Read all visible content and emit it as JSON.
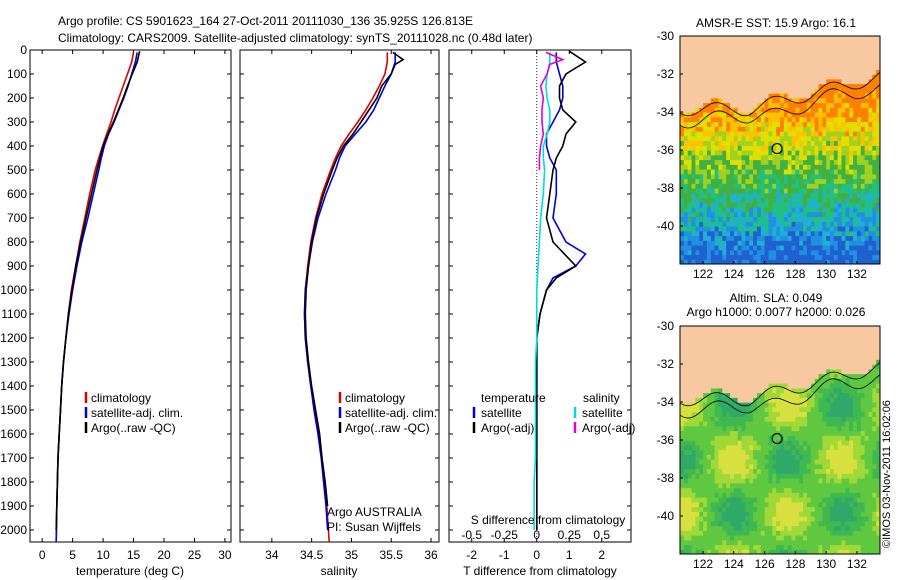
{
  "header": {
    "line1": "Argo profile: CS 5901623_164 27-Oct-2011 20111030_136 35.925S 126.813E",
    "line2": "Climatology: CARS2009. Satellite-adjusted climatology: synTS_20111028.nc (0.48d later)"
  },
  "colors": {
    "climatology": "#dd0000",
    "satellite": "#0000dd",
    "argo": "#000000",
    "cyan": "#00dddd",
    "magenta": "#dd00dd",
    "land": "#f8c8a0"
  },
  "chart_data": [
    {
      "type": "line",
      "id": "temperature",
      "xlabel": "temperature (deg C)",
      "xlim": [
        -2,
        31
      ],
      "ylim": [
        2050,
        0
      ],
      "x_ticks": [
        0,
        5,
        10,
        15,
        20,
        25,
        30
      ],
      "y_ticks": [
        0,
        100,
        200,
        300,
        400,
        500,
        600,
        700,
        800,
        900,
        1000,
        1100,
        1200,
        1300,
        1400,
        1500,
        1600,
        1700,
        1800,
        1900,
        2000
      ],
      "legend_labels": [
        "climatology",
        "satellite-adj. clim.",
        "Argo(..raw -QC)"
      ],
      "series": [
        {
          "name": "climatology",
          "color": "#dd0000",
          "depth": [
            10,
            50,
            100,
            150,
            200,
            250,
            300,
            350,
            400,
            450,
            500,
            600,
            700,
            800,
            900,
            1000,
            1100,
            1200,
            1300,
            1400,
            1500,
            1600,
            1700,
            1800,
            1900,
            2050
          ],
          "values": [
            15.0,
            14.7,
            14.0,
            13.3,
            12.6,
            11.9,
            11.3,
            10.6,
            9.9,
            9.3,
            8.7,
            7.8,
            7.0,
            6.2,
            5.5,
            4.8,
            4.3,
            3.9,
            3.5,
            3.2,
            3.0,
            2.8,
            2.6,
            2.5,
            2.4,
            2.3
          ]
        },
        {
          "name": "satellite-adj. clim.",
          "color": "#0000dd",
          "depth": [
            10,
            50,
            100,
            150,
            200,
            250,
            300,
            350,
            400,
            450,
            500,
            600,
            700,
            800,
            900,
            1000,
            1100,
            1200,
            1300,
            1400,
            1500,
            1600,
            1700,
            1800,
            1900,
            2050
          ],
          "values": [
            15.6,
            15.3,
            14.7,
            14.1,
            13.4,
            12.6,
            11.8,
            10.9,
            10.2,
            9.7,
            9.3,
            8.4,
            7.5,
            6.5,
            5.7,
            5.0,
            4.4,
            3.9,
            3.5,
            3.2,
            3.0,
            2.8,
            2.6,
            2.5,
            2.4,
            2.3
          ]
        },
        {
          "name": "Argo(..raw -QC)",
          "color": "#000000",
          "depth": [
            5,
            50,
            100,
            150,
            200,
            250,
            300,
            350,
            400,
            450,
            500,
            600,
            700,
            800,
            900,
            1000,
            1100,
            1200,
            1300,
            1400,
            1500,
            1600,
            1700,
            1800,
            1900,
            2000
          ],
          "values": [
            16.0,
            15.6,
            14.8,
            14.0,
            13.3,
            12.5,
            11.7,
            10.8,
            10.0,
            9.5,
            9.0,
            8.1,
            7.2,
            6.3,
            5.5,
            4.9,
            4.3,
            3.9,
            3.5,
            3.2,
            3.0,
            2.8,
            2.6,
            2.5,
            2.4,
            2.3
          ]
        }
      ]
    },
    {
      "type": "line",
      "id": "salinity",
      "xlabel": "salinity",
      "xlim": [
        33.6,
        36.1
      ],
      "ylim": [
        2050,
        0
      ],
      "x_ticks": [
        34,
        34.5,
        35,
        35.5,
        36
      ],
      "legend_labels": [
        "climatology",
        "satellite-adj. clim.",
        "Argo(..raw -QC)"
      ],
      "annotation": [
        "Argo AUSTRALIA",
        "PI: Susan Wijffels"
      ],
      "series": [
        {
          "name": "climatology",
          "color": "#dd0000",
          "depth": [
            10,
            50,
            100,
            150,
            200,
            250,
            300,
            350,
            400,
            450,
            500,
            600,
            700,
            800,
            900,
            1000,
            1100,
            1200,
            1300,
            1400,
            1500,
            1600,
            1700,
            1800,
            1900,
            2050
          ],
          "values": [
            35.45,
            35.45,
            35.42,
            35.35,
            35.27,
            35.18,
            35.08,
            34.97,
            34.87,
            34.8,
            34.74,
            34.63,
            34.55,
            34.49,
            34.45,
            34.42,
            34.41,
            34.42,
            34.45,
            34.49,
            34.54,
            34.59,
            34.63,
            34.66,
            34.69,
            34.72
          ]
        },
        {
          "name": "satellite-adj. clim.",
          "color": "#0000dd",
          "depth": [
            10,
            50,
            100,
            150,
            200,
            250,
            300,
            350,
            400,
            450,
            500,
            600,
            700,
            800,
            900,
            1000,
            1100,
            1200,
            1300,
            1400,
            1500,
            1600,
            1700,
            1800,
            1900,
            2000
          ],
          "values": [
            35.55,
            35.55,
            35.5,
            35.42,
            35.35,
            35.28,
            35.18,
            35.05,
            34.92,
            34.85,
            34.8,
            34.68,
            34.58,
            34.51,
            34.46,
            34.42,
            34.41,
            34.42,
            34.45,
            34.49,
            34.53,
            34.58,
            34.62,
            34.65,
            34.68,
            34.7
          ]
        },
        {
          "name": "Argo(..raw -QC)",
          "color": "#000000",
          "depth": [
            10,
            40,
            60,
            100,
            150,
            200,
            250,
            300,
            350,
            400,
            450,
            500,
            600,
            700,
            800,
            900,
            1000,
            1100,
            1200,
            1300,
            1400,
            1500,
            1600,
            1700,
            1800,
            1900
          ],
          "values": [
            35.52,
            35.65,
            35.55,
            35.5,
            35.38,
            35.32,
            35.22,
            35.12,
            35.02,
            34.9,
            34.82,
            34.76,
            34.65,
            34.56,
            34.5,
            34.46,
            34.43,
            34.42,
            34.43,
            34.46,
            34.5,
            34.55,
            34.6,
            34.63,
            34.67,
            34.7
          ]
        }
      ]
    },
    {
      "type": "line",
      "id": "difference",
      "xlabel": "T difference from climatology",
      "top_axis_label": "S difference from climatology",
      "xlim": [
        -2.7,
        2.9
      ],
      "top_xlim": [
        -0.675,
        0.725
      ],
      "ylim": [
        2050,
        0
      ],
      "x_ticks": [
        -2,
        -1,
        0,
        1,
        2
      ],
      "top_ticks": [
        -0.5,
        -0.25,
        0,
        0.25,
        0.5
      ],
      "top_tick_labels": [
        "-0.5",
        "-0.25",
        "0",
        "0.25",
        "0.5"
      ],
      "legend_headers": [
        "temperature",
        "salinity"
      ],
      "legend_labels": [
        "satellite",
        "Argo(-adj)",
        "satellite",
        "Argo(-adj)"
      ],
      "series": [
        {
          "name": "satellite",
          "axis": "T",
          "color": "#0000dd",
          "depth": [
            10,
            50,
            100,
            150,
            200,
            250,
            300,
            350,
            400,
            450,
            500,
            600,
            700,
            800,
            850,
            900,
            950,
            1000,
            1100,
            1200,
            1300,
            1500,
            1700,
            1900,
            2000
          ],
          "values": [
            0.6,
            0.6,
            0.7,
            0.8,
            0.8,
            0.7,
            0.5,
            0.3,
            0.3,
            0.4,
            0.6,
            0.6,
            0.5,
            0.9,
            1.5,
            1.2,
            0.5,
            0.3,
            0.1,
            0.0,
            0.0,
            0.0,
            0.0,
            0.0,
            0.0
          ]
        },
        {
          "name": "Argo(-adj)",
          "axis": "T",
          "color": "#000000",
          "depth": [
            5,
            50,
            100,
            150,
            200,
            250,
            300,
            350,
            400,
            450,
            500,
            600,
            700,
            800,
            900,
            950,
            1000,
            1100,
            1200,
            1300,
            1500,
            1700,
            1900,
            2000
          ],
          "values": [
            1.0,
            1.5,
            0.9,
            0.7,
            0.7,
            0.8,
            1.2,
            0.9,
            0.8,
            0.6,
            0.5,
            0.4,
            0.3,
            0.5,
            1.2,
            0.6,
            0.3,
            0.1,
            0.0,
            0.0,
            0.0,
            0.0,
            0.0,
            0.0
          ]
        },
        {
          "name": "satellite",
          "axis": "S",
          "color": "#00dddd",
          "depth": [
            10,
            50,
            100,
            150,
            200,
            250,
            300,
            350,
            400,
            450,
            500,
            600,
            700,
            800,
            900,
            1000,
            1100,
            1200,
            1300,
            1400,
            1500,
            1600,
            1700,
            1800,
            1900,
            2000
          ],
          "values": [
            0.1,
            0.1,
            0.08,
            0.07,
            0.08,
            0.1,
            0.1,
            0.08,
            0.05,
            0.05,
            0.06,
            0.05,
            0.03,
            0.02,
            0.01,
            0.0,
            0.0,
            0.0,
            -0.01,
            -0.01,
            -0.01,
            -0.01,
            -0.01,
            -0.02,
            -0.02,
            -0.02
          ]
        },
        {
          "name": "Argo(-adj)",
          "axis": "S",
          "color": "#dd00dd",
          "depth": [
            10,
            40,
            60,
            100,
            150,
            200,
            250,
            300,
            350,
            400,
            450,
            500
          ],
          "values": [
            0.07,
            0.2,
            0.1,
            0.08,
            0.03,
            0.05,
            0.04,
            0.04,
            0.05,
            0.03,
            0.02,
            0.02
          ]
        }
      ]
    },
    {
      "type": "heatmap",
      "id": "sst-map",
      "title": "AMSR-E SST: 15.9 Argo: 16.1",
      "xlim": [
        120.5,
        133.5
      ],
      "ylim": [
        -42,
        -30
      ],
      "x_ticks": [
        122,
        124,
        126,
        128,
        130,
        132
      ],
      "y_ticks": [
        -30,
        -32,
        -34,
        -36,
        -38,
        -40
      ],
      "argo_position": [
        126.813,
        -35.925
      ]
    },
    {
      "type": "heatmap",
      "id": "sla-map",
      "title_line1": "Altim. SLA: 0.049",
      "title_line2": "Argo h1000: 0.0077 h2000: 0.026",
      "xlim": [
        120.5,
        133.5
      ],
      "ylim": [
        -42,
        -30
      ],
      "x_ticks": [
        122,
        124,
        126,
        128,
        130,
        132
      ],
      "y_ticks": [
        -30,
        -32,
        -34,
        -36,
        -38,
        -40
      ],
      "argo_position": [
        126.813,
        -35.925
      ]
    }
  ],
  "credit": "©IMOS 03-Nov-2011 16:02:06"
}
